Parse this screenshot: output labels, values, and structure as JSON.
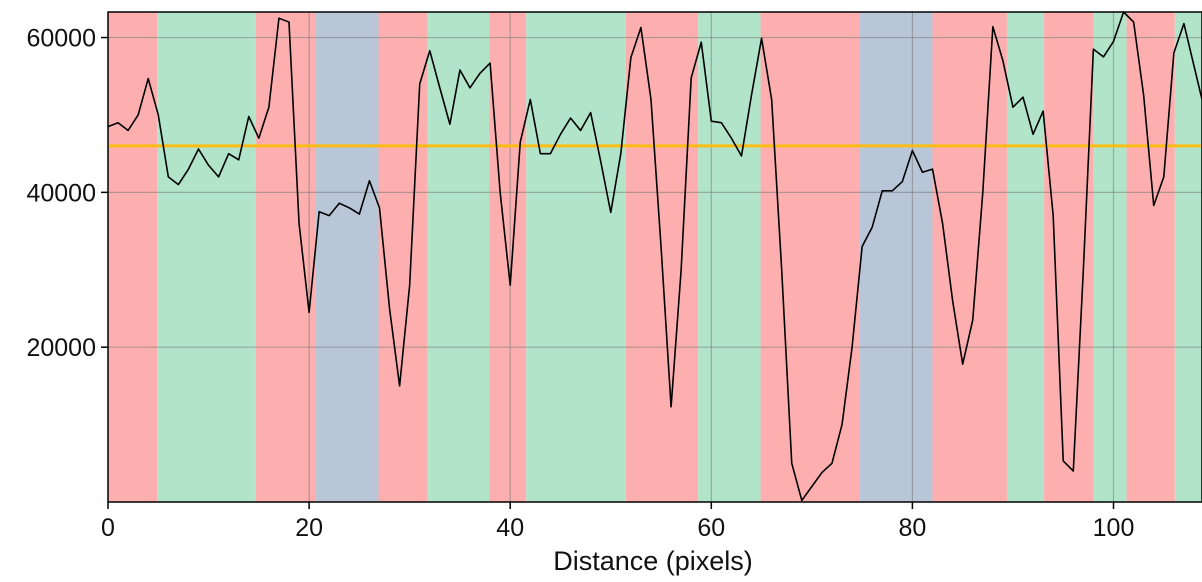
{
  "chart_data": {
    "type": "line",
    "title": "",
    "xlabel": "Distance (pixels)",
    "ylabel": "",
    "xlim": [
      0,
      108.8
    ],
    "ylim": [
      0,
      63300
    ],
    "x_ticks": [
      0,
      20,
      40,
      60,
      80,
      100
    ],
    "y_ticks": [
      20000,
      40000,
      60000
    ],
    "grid": true,
    "colors": {
      "red": "#fdafaf",
      "green": "#b1e4c8",
      "blue": "#b9c6d8",
      "line": "#000000",
      "threshold": "#fbbd14",
      "grid": "#7a7a7a",
      "frame": "#000000"
    },
    "bands": [
      {
        "start": 0,
        "end": 4.9,
        "color": "red"
      },
      {
        "start": 4.9,
        "end": 14.7,
        "color": "green"
      },
      {
        "start": 14.7,
        "end": 20.6,
        "color": "red"
      },
      {
        "start": 20.6,
        "end": 26.9,
        "color": "blue"
      },
      {
        "start": 26.9,
        "end": 31.8,
        "color": "red"
      },
      {
        "start": 31.8,
        "end": 37.9,
        "color": "green"
      },
      {
        "start": 37.9,
        "end": 41.6,
        "color": "red"
      },
      {
        "start": 41.6,
        "end": 51.5,
        "color": "green"
      },
      {
        "start": 51.5,
        "end": 58.7,
        "color": "red"
      },
      {
        "start": 58.7,
        "end": 64.9,
        "color": "green"
      },
      {
        "start": 64.9,
        "end": 74.7,
        "color": "red"
      },
      {
        "start": 74.7,
        "end": 82.0,
        "color": "blue"
      },
      {
        "start": 82.0,
        "end": 89.4,
        "color": "red"
      },
      {
        "start": 89.4,
        "end": 93.1,
        "color": "green"
      },
      {
        "start": 93.1,
        "end": 98.0,
        "color": "red"
      },
      {
        "start": 98.0,
        "end": 101.3,
        "color": "green"
      },
      {
        "start": 101.3,
        "end": 106.1,
        "color": "red"
      },
      {
        "start": 106.1,
        "end": 108.8,
        "color": "green"
      }
    ],
    "threshold": 46000,
    "series": [
      {
        "x": [
          0,
          1,
          2,
          3,
          4,
          5,
          6,
          7,
          8,
          9,
          10,
          11,
          12,
          13,
          14,
          15,
          16,
          17,
          18,
          19,
          20,
          21,
          22,
          23,
          24,
          25,
          26,
          27,
          28,
          29,
          30,
          31,
          32,
          33,
          34,
          35,
          36,
          37,
          38,
          39,
          40,
          41,
          42,
          43,
          44,
          45,
          46,
          47,
          48,
          49,
          50,
          51,
          52,
          53,
          54,
          55,
          56,
          57,
          58,
          59,
          60,
          61,
          62,
          63,
          64,
          65,
          66,
          67,
          68,
          69,
          70,
          71,
          72,
          73,
          74,
          75,
          76,
          77,
          78,
          79,
          80,
          81,
          82,
          83,
          84,
          85,
          86,
          87,
          88,
          89,
          90,
          91,
          92,
          93,
          94,
          95,
          96,
          97,
          98,
          99,
          100,
          101,
          102,
          103,
          104,
          105,
          106,
          107,
          108.8
        ],
        "y": [
          48500,
          49000,
          48000,
          50000,
          54700,
          50000,
          42000,
          41000,
          43000,
          45600,
          43500,
          42000,
          45000,
          44200,
          49800,
          47000,
          51000,
          62500,
          62000,
          36000,
          24500,
          37500,
          37000,
          38600,
          38000,
          37200,
          41500,
          38000,
          25000,
          15000,
          28000,
          54000,
          58300,
          53500,
          48800,
          55800,
          53500,
          55400,
          56700,
          40000,
          28000,
          46500,
          52000,
          45000,
          45000,
          47500,
          49600,
          48000,
          50300,
          44000,
          37400,
          45000,
          57400,
          61300,
          52000,
          33000,
          12300,
          30000,
          54800,
          59400,
          49200,
          49000,
          47000,
          44700,
          52600,
          59900,
          52000,
          30000,
          5000,
          200,
          2000,
          3800,
          5000,
          10000,
          20000,
          33000,
          35500,
          40200,
          40200,
          41400,
          45400,
          42600,
          43000,
          36000,
          26000,
          17800,
          23500,
          40000,
          61400,
          57000,
          51000,
          52300,
          47500,
          50500,
          37000,
          5300,
          4000,
          30000,
          58500,
          57500,
          59500,
          63300,
          62000,
          52500,
          38300,
          42000,
          58000,
          61800,
          52000
        ]
      }
    ]
  }
}
